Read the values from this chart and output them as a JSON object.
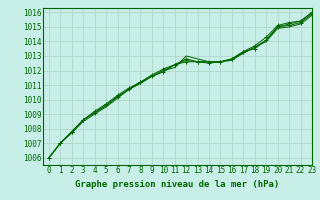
{
  "title": "Graphe pression niveau de la mer (hPa)",
  "bg_color": "#c8eee8",
  "plot_bg_color": "#c8eee8",
  "outer_bg": "#ffffff",
  "grid_color": "#b0d8c8",
  "line_color": "#006600",
  "xlim": [
    -0.5,
    23
  ],
  "ylim": [
    1005.5,
    1016.3
  ],
  "xticks": [
    0,
    1,
    2,
    3,
    4,
    5,
    6,
    7,
    8,
    9,
    10,
    11,
    12,
    13,
    14,
    15,
    16,
    17,
    18,
    19,
    20,
    21,
    22,
    23
  ],
  "yticks": [
    1006,
    1007,
    1008,
    1009,
    1010,
    1011,
    1012,
    1013,
    1014,
    1015,
    1016
  ],
  "series": [
    [
      1006.0,
      1007.0,
      1007.7,
      1008.5,
      1009.0,
      1009.5,
      1010.1,
      1010.7,
      1011.1,
      1011.6,
      1012.0,
      1012.2,
      1013.0,
      1012.8,
      1012.6,
      1012.6,
      1012.7,
      1013.2,
      1013.6,
      1014.0,
      1014.9,
      1015.0,
      1015.2,
      1015.8
    ],
    [
      1006.0,
      1007.0,
      1007.8,
      1008.6,
      1009.1,
      1009.6,
      1010.2,
      1010.7,
      1011.2,
      1011.6,
      1011.9,
      1012.4,
      1012.6,
      1012.6,
      1012.6,
      1012.6,
      1012.8,
      1013.3,
      1013.5,
      1014.1,
      1015.0,
      1015.1,
      1015.3,
      1015.9
    ],
    [
      1006.0,
      1007.0,
      1007.8,
      1008.6,
      1009.1,
      1009.6,
      1010.2,
      1010.7,
      1011.2,
      1011.6,
      1012.0,
      1012.4,
      1012.7,
      1012.6,
      1012.6,
      1012.6,
      1012.8,
      1013.2,
      1013.6,
      1014.1,
      1015.0,
      1015.2,
      1015.4,
      1016.0
    ],
    [
      1006.0,
      1007.0,
      1007.8,
      1008.6,
      1009.2,
      1009.7,
      1010.3,
      1010.8,
      1011.2,
      1011.7,
      1012.1,
      1012.4,
      1012.8,
      1012.6,
      1012.5,
      1012.6,
      1012.8,
      1013.3,
      1013.7,
      1014.3,
      1015.1,
      1015.3,
      1015.4,
      1016.0
    ]
  ],
  "marker_series": [
    1,
    3
  ],
  "tick_fontsize": 5.5,
  "label_fontsize": 6.5
}
